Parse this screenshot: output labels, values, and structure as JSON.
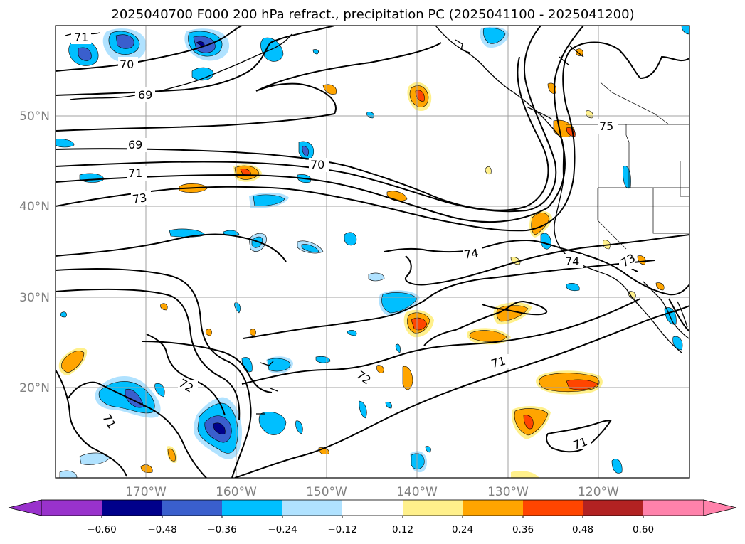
{
  "title": "2025040700 F000 200 hPa refract., precipitation PC (2025041100 - 2025041200)",
  "lat_labels": [
    "50°N",
    "40°N",
    "30°N",
    "20°N"
  ],
  "lon_labels": [
    "170°W",
    "160°W",
    "150°W",
    "140°W",
    "130°W",
    "120°W"
  ],
  "contour_labels": [
    "71",
    "70",
    "69",
    "69",
    "71",
    "73",
    "70",
    "74",
    "74",
    "75",
    "73",
    "72",
    "72",
    "71",
    "71",
    "71"
  ],
  "colorbar": {
    "tick_labels": [
      "−0.60",
      "−0.48",
      "−0.36",
      "−0.24",
      "−0.12",
      "0.12",
      "0.24",
      "0.36",
      "0.48",
      "0.60"
    ],
    "colors": [
      "#9932cc",
      "#00008b",
      "#3a5fcd",
      "#00bfff",
      "#b0e2ff",
      "#ffffff",
      "#fff08b",
      "#ffa500",
      "#ff4500",
      "#b22222",
      "#ff82ab"
    ]
  },
  "map_colors": {
    "shading": {
      "pos1": "#fff08b",
      "pos2": "#ffa500",
      "pos3": "#ff4500",
      "neg1": "#b0e2ff",
      "neg2": "#00bfff",
      "neg3": "#3a5fcd",
      "neg4": "#00008b"
    },
    "contour": "#000000",
    "grid": "#a0a0a0"
  }
}
